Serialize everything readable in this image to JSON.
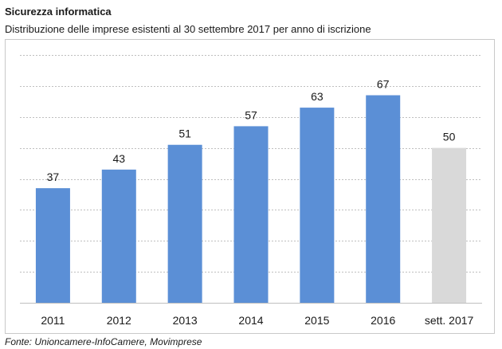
{
  "header": {
    "title": "Sicurezza informatica",
    "subtitle": "Distribuzione delle imprese esistenti al 30 settembre 2017 per anno di iscrizione"
  },
  "footer": {
    "source": "Fonte: Unioncamere-InfoCamere, Movimprese"
  },
  "colors": {
    "bar": "#5B8FD6",
    "bar_highlight": "#D9D9D9",
    "gridline": "#BFBFBF"
  },
  "chart_data": {
    "type": "bar",
    "title": "",
    "xlabel": "",
    "ylabel": "",
    "categories": [
      "2011",
      "2012",
      "2013",
      "2014",
      "2015",
      "2016",
      "sett. 2017"
    ],
    "values": [
      37,
      43,
      51,
      57,
      63,
      67,
      50
    ],
    "ylim": [
      0,
      80
    ],
    "grid": true,
    "legend": "none",
    "data_labels": true,
    "highlight_category": "sett. 2017"
  }
}
